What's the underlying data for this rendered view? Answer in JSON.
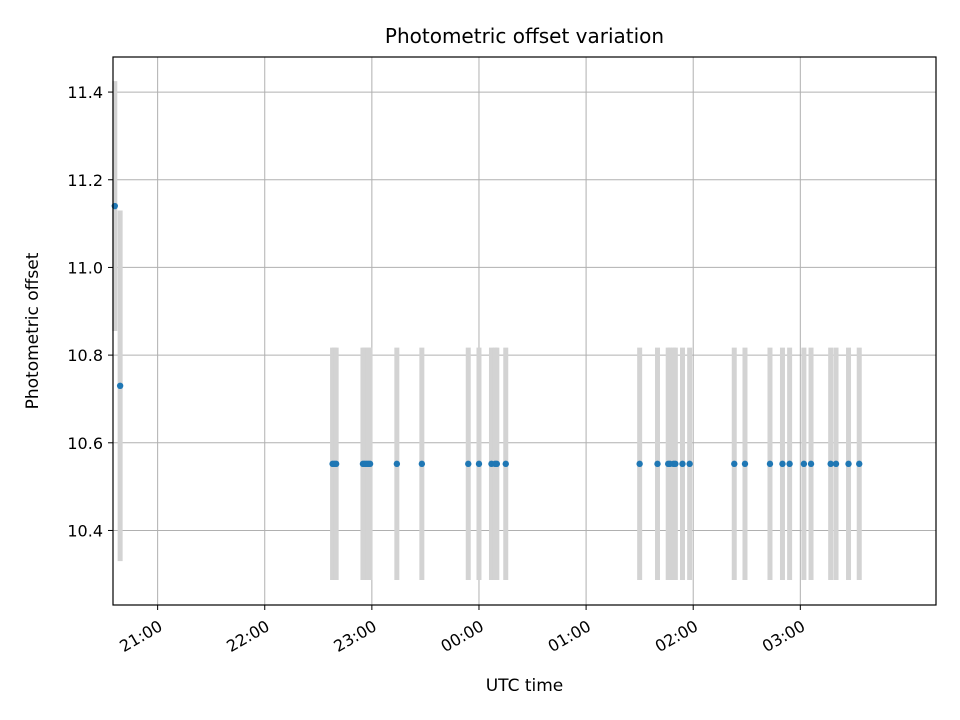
{
  "chart_data": {
    "type": "scatter",
    "title": "Photometric offset variation",
    "xlabel": "UTC time",
    "ylabel": "Photometric offset",
    "x_axis_type": "time",
    "xlim": [
      "20:35",
      "04:16"
    ],
    "ylim": [
      10.23,
      11.48
    ],
    "grid": true,
    "x_ticks": [
      "21:00",
      "22:00",
      "23:00",
      "00:00",
      "01:00",
      "02:00",
      "03:00"
    ],
    "y_ticks": [
      10.4,
      10.6,
      10.8,
      11.0,
      11.2,
      11.4
    ],
    "y_tick_labels": [
      "10.4",
      "10.6",
      "10.8",
      "11.0",
      "11.2",
      "11.4"
    ],
    "point_color": "#1f77b4",
    "errorbar_color": "#d3d3d3",
    "points": [
      {
        "x": "20:36",
        "y": 11.14,
        "err": 0.285
      },
      {
        "x": "20:39",
        "y": 10.73,
        "err": 0.4
      },
      {
        "x": "22:38",
        "y": 10.552,
        "err": 0.265
      },
      {
        "x": "22:39",
        "y": 10.552,
        "err": 0.265
      },
      {
        "x": "22:40",
        "y": 10.552,
        "err": 0.265
      },
      {
        "x": "22:55",
        "y": 10.552,
        "err": 0.265
      },
      {
        "x": "22:56",
        "y": 10.552,
        "err": 0.265
      },
      {
        "x": "22:57",
        "y": 10.552,
        "err": 0.265
      },
      {
        "x": "22:58",
        "y": 10.552,
        "err": 0.265
      },
      {
        "x": "22:59",
        "y": 10.552,
        "err": 0.265
      },
      {
        "x": "23:14",
        "y": 10.552,
        "err": 0.265
      },
      {
        "x": "23:28",
        "y": 10.552,
        "err": 0.265
      },
      {
        "x": "23:54",
        "y": 10.552,
        "err": 0.265
      },
      {
        "x": "00:00",
        "y": 10.552,
        "err": 0.265
      },
      {
        "x": "00:07",
        "y": 10.552,
        "err": 0.265
      },
      {
        "x": "00:09",
        "y": 10.552,
        "err": 0.265
      },
      {
        "x": "00:10",
        "y": 10.552,
        "err": 0.265
      },
      {
        "x": "00:15",
        "y": 10.552,
        "err": 0.265
      },
      {
        "x": "01:30",
        "y": 10.552,
        "err": 0.265
      },
      {
        "x": "01:40",
        "y": 10.552,
        "err": 0.265
      },
      {
        "x": "01:46",
        "y": 10.552,
        "err": 0.265
      },
      {
        "x": "01:47",
        "y": 10.552,
        "err": 0.265
      },
      {
        "x": "01:49",
        "y": 10.552,
        "err": 0.265
      },
      {
        "x": "01:50",
        "y": 10.552,
        "err": 0.265
      },
      {
        "x": "01:54",
        "y": 10.552,
        "err": 0.265
      },
      {
        "x": "01:58",
        "y": 10.552,
        "err": 0.265
      },
      {
        "x": "02:23",
        "y": 10.552,
        "err": 0.265
      },
      {
        "x": "02:29",
        "y": 10.552,
        "err": 0.265
      },
      {
        "x": "02:43",
        "y": 10.552,
        "err": 0.265
      },
      {
        "x": "02:50",
        "y": 10.552,
        "err": 0.265
      },
      {
        "x": "02:54",
        "y": 10.552,
        "err": 0.265
      },
      {
        "x": "03:02",
        "y": 10.552,
        "err": 0.265
      },
      {
        "x": "03:06",
        "y": 10.552,
        "err": 0.265
      },
      {
        "x": "03:17",
        "y": 10.552,
        "err": 0.265
      },
      {
        "x": "03:20",
        "y": 10.552,
        "err": 0.265
      },
      {
        "x": "03:27",
        "y": 10.552,
        "err": 0.265
      },
      {
        "x": "03:33",
        "y": 10.552,
        "err": 0.265
      }
    ]
  }
}
